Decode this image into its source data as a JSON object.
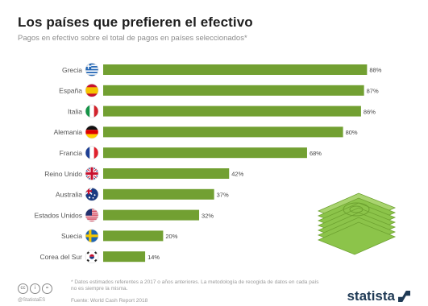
{
  "chart_data": {
    "type": "bar",
    "orientation": "horizontal",
    "title": "Los países que prefieren el efectivo",
    "subtitle": "Pagos en efectivo sobre el total de pagos en países seleccionados*",
    "categories": [
      "Grecia",
      "España",
      "Italia",
      "Alemania",
      "Francia",
      "Reino Unido",
      "Australia",
      "Estados Unidos",
      "Suecia",
      "Corea del Sur"
    ],
    "values": [
      88,
      87,
      86,
      80,
      68,
      42,
      37,
      32,
      20,
      14
    ],
    "value_labels": [
      "88%",
      "87%",
      "86%",
      "80%",
      "68%",
      "42%",
      "37%",
      "32%",
      "20%",
      "14%"
    ],
    "xlim": [
      0,
      100
    ],
    "grid": false,
    "bar_color": "#72a032",
    "flag_icons": [
      "greece-flag-icon",
      "spain-flag-icon",
      "italy-flag-icon",
      "germany-flag-icon",
      "france-flag-icon",
      "uk-flag-icon",
      "australia-flag-icon",
      "usa-flag-icon",
      "sweden-flag-icon",
      "south-korea-flag-icon"
    ]
  },
  "footer": {
    "footnote": "* Datos estimados referentes a 2017 o años anteriores. La metodología de recogida de datos en cada país no es siempre la misma.",
    "source": "Fuente: World Cash Report 2018",
    "cc_icons": [
      "cc-icon",
      "by-icon",
      "nd-icon"
    ],
    "handle": "@StatistaES",
    "brand": "statista"
  },
  "colors": {
    "bar": "#72a032",
    "brand": "#1f3a55",
    "money": "#8cc44a"
  }
}
